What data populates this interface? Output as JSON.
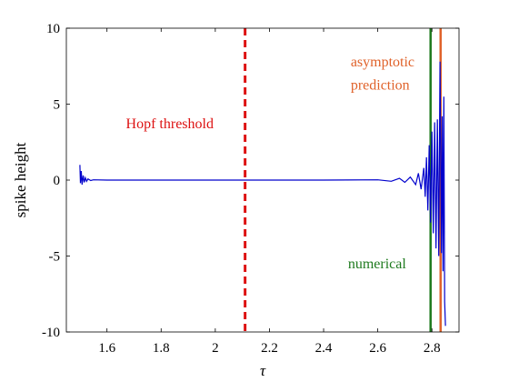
{
  "chart_data": {
    "type": "line",
    "title": "",
    "xlabel": "τ",
    "ylabel": "spike height",
    "xlim": [
      1.45,
      2.9
    ],
    "ylim": [
      -10,
      10
    ],
    "x_ticks": [
      1.6,
      1.8,
      2.0,
      2.2,
      2.4,
      2.6,
      2.8
    ],
    "x_tick_labels": [
      "1.6",
      "1.8",
      "2",
      "2.2",
      "2.4",
      "2.6",
      "2.8"
    ],
    "y_ticks": [
      -10,
      -5,
      0,
      5,
      10
    ],
    "y_tick_labels": [
      "-10",
      "-5",
      "0",
      "5",
      "10"
    ],
    "grid": false,
    "series": [
      {
        "color": "#0000cc",
        "x": [
          1.5,
          1.502,
          1.505,
          1.508,
          1.512,
          1.516,
          1.52,
          1.525,
          1.53,
          1.54,
          1.55,
          1.6,
          2.0,
          2.4,
          2.6,
          2.65,
          2.68,
          2.7,
          2.72,
          2.74,
          2.75,
          2.76,
          2.77,
          2.775,
          2.78,
          2.785,
          2.79,
          2.795,
          2.8,
          2.805,
          2.81,
          2.815,
          2.82,
          2.825,
          2.83,
          2.835,
          2.838,
          2.841,
          2.844,
          2.847,
          2.85
        ],
        "values": [
          1.0,
          -0.2,
          0.6,
          -0.3,
          0.3,
          -0.15,
          0.15,
          -0.08,
          0.08,
          -0.03,
          0.02,
          0.0,
          0.0,
          0.0,
          0.02,
          -0.08,
          0.12,
          -0.15,
          0.2,
          -0.3,
          0.45,
          -0.6,
          0.8,
          -1.1,
          1.5,
          -2.0,
          2.3,
          -2.8,
          3.2,
          -3.5,
          3.8,
          -4.5,
          4.0,
          -5.0,
          7.8,
          -4.8,
          4.2,
          -6.0,
          5.5,
          -8.0,
          -9.6
        ]
      }
    ],
    "vertical_lines": [
      {
        "x": 2.11,
        "style": "dashed",
        "color": "#dd1111"
      },
      {
        "x": 2.795,
        "style": "solid",
        "color": "#1e7a1e"
      },
      {
        "x": 2.832,
        "style": "solid",
        "color": "#e0622a"
      }
    ],
    "annotations": [
      {
        "text": "Hopf threshold",
        "x": 1.67,
        "y": 3.4,
        "color": "#dd1111"
      },
      {
        "text": "numerical",
        "x": 2.49,
        "y": -5.8,
        "color": "#1e7a1e"
      },
      {
        "text": "asymptotic",
        "x": 2.5,
        "y": 7.5,
        "color": "#e0622a"
      },
      {
        "text": "prediction",
        "x": 2.5,
        "y": 5.95,
        "color": "#e0622a"
      }
    ]
  }
}
